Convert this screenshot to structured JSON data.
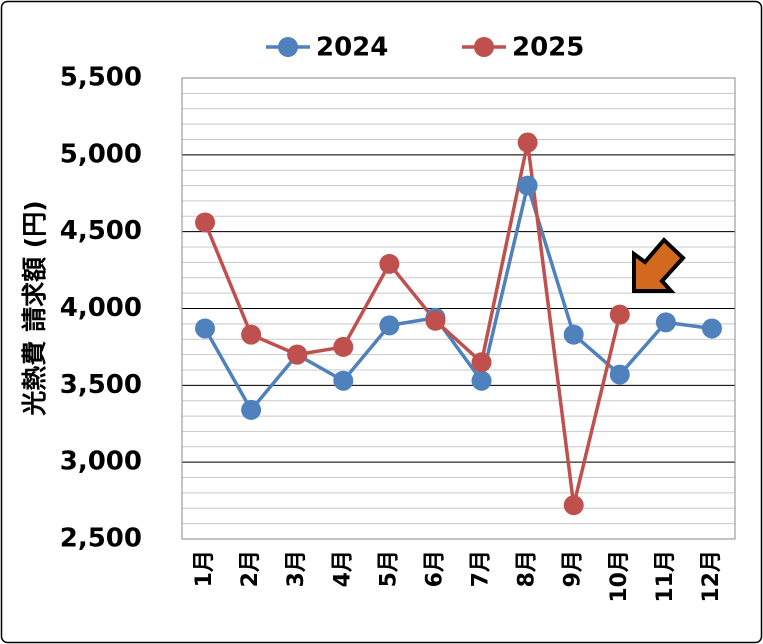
{
  "chart_data": {
    "type": "line",
    "y_label": "光熱費 請求額 (円)",
    "categories": [
      "1月",
      "2月",
      "3月",
      "4月",
      "5月",
      "6月",
      "7月",
      "8月",
      "9月",
      "10月",
      "11月",
      "12月"
    ],
    "series": [
      {
        "name": "2024",
        "color": "#4f81bd",
        "values": [
          3870,
          3340,
          3700,
          3530,
          3890,
          3940,
          3530,
          4800,
          3830,
          3570,
          3910,
          3870
        ]
      },
      {
        "name": "2025",
        "color": "#c0504d",
        "values": [
          4560,
          3830,
          3700,
          3750,
          4290,
          3920,
          3650,
          5080,
          2720,
          3960,
          null,
          null
        ]
      }
    ],
    "ylim": [
      2500,
      5500
    ],
    "yticks": [
      {
        "value": 2500,
        "label": "2,500"
      },
      {
        "value": 3000,
        "label": "3,000"
      },
      {
        "value": 3500,
        "label": "3,500"
      },
      {
        "value": 4000,
        "label": "4,000"
      },
      {
        "value": 4500,
        "label": "4,500"
      },
      {
        "value": 5000,
        "label": "5,000"
      },
      {
        "value": 5500,
        "label": "5,500"
      }
    ],
    "minor_ytick_interval": 100,
    "grid": true,
    "legend": "top"
  }
}
